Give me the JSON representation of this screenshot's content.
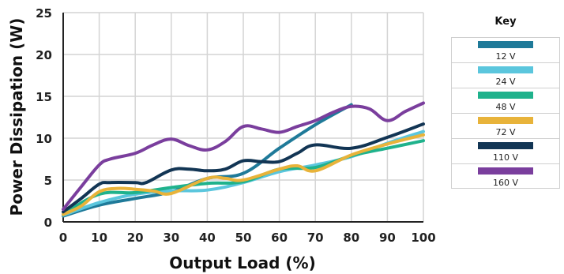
{
  "chart_data": {
    "type": "line",
    "title": "",
    "xlabel": "Output Load (%)",
    "ylabel": "Power Dissipation (W)",
    "xlim": [
      0,
      100
    ],
    "ylim": [
      0,
      25
    ],
    "xticks": [
      0,
      10,
      20,
      30,
      40,
      50,
      60,
      70,
      80,
      90,
      100
    ],
    "yticks": [
      0,
      5,
      10,
      15,
      20,
      25
    ],
    "grid": true,
    "legend_title": "Key",
    "legend_position": "right",
    "series": [
      {
        "name": "12 V",
        "color": "#1f7a99",
        "x": [
          0,
          10,
          20,
          30,
          40,
          50,
          60,
          70,
          80
        ],
        "y": [
          0.7,
          2.0,
          2.8,
          3.6,
          5.2,
          5.8,
          8.8,
          11.6,
          14.0
        ]
      },
      {
        "name": "24 V",
        "color": "#5bc6dd",
        "x": [
          0,
          10,
          20,
          30,
          40,
          50,
          60,
          70,
          80,
          90,
          100
        ],
        "y": [
          0.8,
          2.3,
          3.3,
          3.7,
          3.8,
          4.7,
          6.0,
          6.8,
          7.8,
          9.4,
          10.8
        ]
      },
      {
        "name": "48 V",
        "color": "#1fb28c",
        "x": [
          0,
          10,
          20,
          30,
          40,
          50,
          60,
          70,
          80,
          90,
          100
        ],
        "y": [
          0.9,
          3.3,
          3.5,
          4.1,
          4.6,
          4.8,
          6.3,
          6.5,
          7.9,
          8.8,
          9.7
        ]
      },
      {
        "name": "72 V",
        "color": "#e8b33a",
        "x": [
          0,
          5,
          10,
          15,
          20,
          25,
          30,
          40,
          45,
          50,
          60,
          65,
          70,
          80,
          90,
          100
        ],
        "y": [
          0.9,
          1.9,
          3.6,
          4.0,
          3.9,
          3.7,
          3.4,
          5.2,
          5.2,
          5.0,
          6.3,
          6.7,
          6.1,
          8.0,
          9.3,
          10.4
        ]
      },
      {
        "name": "110 V",
        "color": "#123554",
        "x": [
          0,
          5,
          10,
          13,
          20,
          23,
          30,
          35,
          40,
          45,
          50,
          55,
          60,
          65,
          70,
          80,
          90,
          100
        ],
        "y": [
          1.2,
          2.8,
          4.5,
          4.7,
          4.7,
          4.7,
          6.2,
          6.3,
          6.1,
          6.3,
          7.3,
          7.2,
          7.2,
          8.2,
          9.2,
          8.8,
          10.1,
          11.7
        ]
      },
      {
        "name": "160 V",
        "color": "#7a3e9d",
        "x": [
          0,
          5,
          10,
          13,
          20,
          25,
          30,
          35,
          40,
          45,
          50,
          55,
          60,
          65,
          70,
          75,
          80,
          85,
          90,
          95,
          100
        ],
        "y": [
          1.5,
          4.2,
          6.8,
          7.5,
          8.2,
          9.2,
          9.9,
          9.1,
          8.6,
          9.6,
          11.4,
          11.1,
          10.7,
          11.4,
          12.1,
          13.1,
          13.8,
          13.5,
          12.1,
          13.2,
          14.2
        ]
      }
    ]
  }
}
